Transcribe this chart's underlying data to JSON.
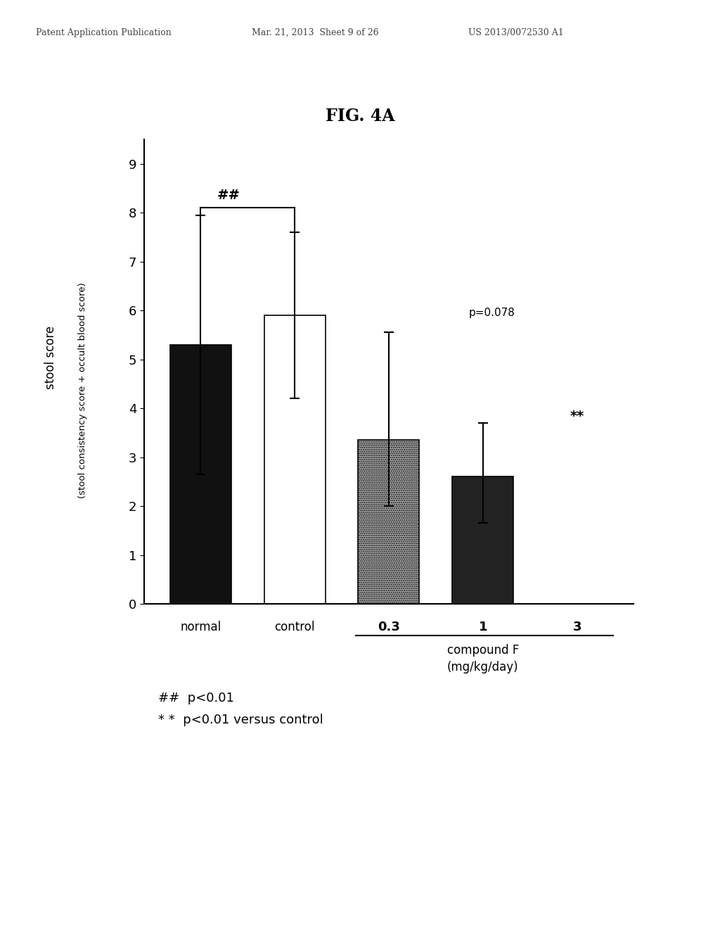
{
  "title": "FIG. 4A",
  "patent_header_left": "Patent Application Publication",
  "patent_header_center": "Mar. 21, 2013  Sheet 9 of 26",
  "patent_header_right": "US 2013/0072530 A1",
  "bar_values": [
    5.3,
    5.9,
    3.35,
    2.6
  ],
  "error_upper": [
    2.65,
    1.7,
    2.2,
    1.1
  ],
  "error_lower": [
    2.65,
    1.7,
    1.35,
    0.95
  ],
  "bar_colors": [
    "#111111",
    "#ffffff",
    "#b0b0b0",
    "#222222"
  ],
  "bar_edge_colors": [
    "#000000",
    "#000000",
    "#000000",
    "#000000"
  ],
  "ylabel_top": "stool score",
  "ylabel_bottom": "(stool consistency score + occult blood score)",
  "xlabel_line1": "compound F",
  "xlabel_line2": "(mg/kg/day)",
  "ylim": [
    0,
    9.5
  ],
  "yticks": [
    0,
    1,
    2,
    3,
    4,
    5,
    6,
    7,
    8,
    9
  ],
  "annotation_hash_label": "##",
  "annotation_pval_label": "p=0.078",
  "annotation_star_label": "**",
  "legend_hash": "##  p<0.01",
  "legend_star": "* *  p<0.01 versus control",
  "background_color": "#ffffff",
  "fig_width": 10.24,
  "fig_height": 13.2
}
